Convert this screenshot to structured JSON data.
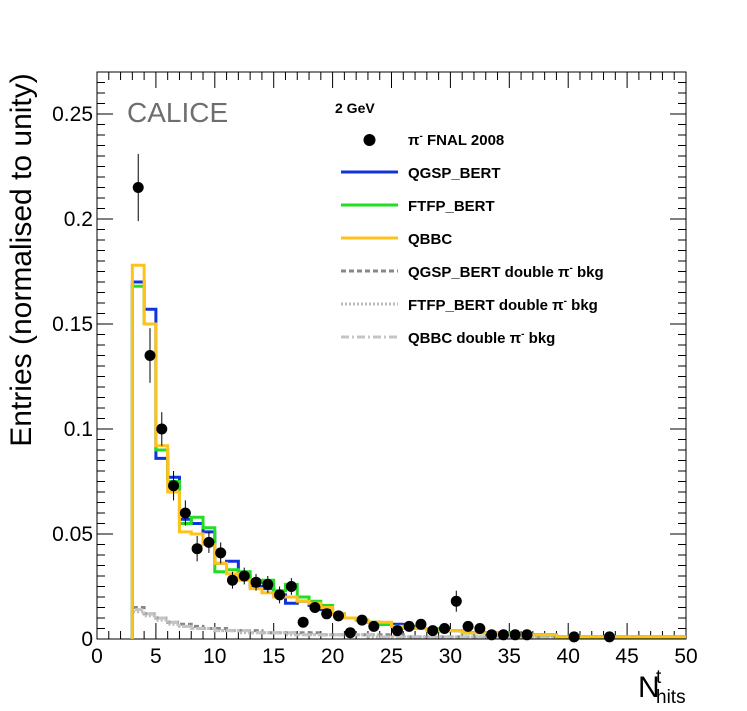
{
  "chart_data": {
    "type": "histogram",
    "title": "",
    "xlabel": {
      "main": "N",
      "sup": "t",
      "sub": "hits"
    },
    "ylabel": "Entries (normalised to unity)",
    "xlim": [
      0,
      50
    ],
    "ylim": [
      0,
      0.27
    ],
    "x_ticks": [
      0,
      5,
      10,
      15,
      20,
      25,
      30,
      35,
      40,
      45,
      50
    ],
    "x_tick_labels": [
      "0",
      "5",
      "10",
      "15",
      "20",
      "25",
      "30",
      "35",
      "40",
      "45",
      "50"
    ],
    "y_ticks": [
      0,
      0.05,
      0.1,
      0.15,
      0.2,
      0.25
    ],
    "y_tick_labels": [
      "0",
      "0.05",
      "0.1",
      "0.15",
      "0.2",
      "0.25"
    ],
    "watermark": "CALICE",
    "energy_label": "2 GeV",
    "data_points": {
      "name": "FNAL 2008",
      "x": [
        3.5,
        4.5,
        5.5,
        6.5,
        7.5,
        8.5,
        9.5,
        10.5,
        11.5,
        12.5,
        13.5,
        14.5,
        15.5,
        16.5,
        17.5,
        18.5,
        19.5,
        20.5,
        21.5,
        22.5,
        23.5,
        25.5,
        26.5,
        27.5,
        28.5,
        29.5,
        30.5,
        31.5,
        32.5,
        33.5,
        34.5,
        35.5,
        36.5,
        40.5,
        43.5
      ],
      "y": [
        0.215,
        0.135,
        0.1,
        0.073,
        0.06,
        0.043,
        0.046,
        0.041,
        0.028,
        0.03,
        0.027,
        0.026,
        0.021,
        0.025,
        0.008,
        0.015,
        0.012,
        0.011,
        0.003,
        0.009,
        0.006,
        0.004,
        0.006,
        0.007,
        0.004,
        0.005,
        0.018,
        0.006,
        0.005,
        0.002,
        0.002,
        0.002,
        0.002,
        0.001,
        0.001
      ],
      "err": [
        0.016,
        0.013,
        0.008,
        0.007,
        0.006,
        0.006,
        0.005,
        0.005,
        0.004,
        0.004,
        0.004,
        0.004,
        0.004,
        0.004,
        0.002,
        0.002,
        0.002,
        0.002,
        0.001,
        0.002,
        0.001,
        0.001,
        0.001,
        0.001,
        0.001,
        0.001,
        0.005,
        0.001,
        0.001,
        0.001,
        0.001,
        0.001,
        0.001,
        0.001,
        0.001
      ]
    },
    "bin_edges": [
      3,
      4,
      5,
      6,
      7,
      8,
      9,
      10,
      11,
      12,
      13,
      14,
      15,
      16,
      17,
      18,
      19,
      20,
      21,
      22,
      23,
      24,
      25,
      26,
      27,
      28,
      29,
      30,
      31,
      32,
      33,
      34,
      35,
      36,
      37,
      38,
      39,
      40,
      41,
      42,
      43,
      44,
      45,
      46,
      47,
      48,
      49,
      50
    ],
    "series": [
      {
        "name": "QGSP_BERT",
        "color": "#1133dd",
        "style": "solid",
        "values": [
          0.17,
          0.157,
          0.086,
          0.077,
          0.057,
          0.055,
          0.051,
          0.036,
          0.037,
          0.03,
          0.025,
          0.024,
          0.021,
          0.017,
          0.018,
          0.016,
          0.014,
          0.012,
          0.01,
          0.009,
          0.008,
          0.007,
          0.007,
          0.005,
          0.005,
          0.005,
          0.004,
          0.004,
          0.003,
          0.003,
          0.003,
          0.003,
          0.002,
          0.002,
          0.002,
          0.002,
          0.001,
          0.001,
          0.001,
          0.001,
          0.001,
          0.001,
          0.001,
          0.001,
          0.001,
          0.001,
          0.001
        ]
      },
      {
        "name": "FTFP_BERT",
        "color": "#22dd22",
        "style": "solid",
        "values": [
          0.168,
          0.15,
          0.09,
          0.075,
          0.055,
          0.058,
          0.053,
          0.032,
          0.033,
          0.032,
          0.027,
          0.028,
          0.023,
          0.026,
          0.02,
          0.018,
          0.016,
          0.012,
          0.01,
          0.009,
          0.008,
          0.007,
          0.006,
          0.006,
          0.005,
          0.005,
          0.004,
          0.004,
          0.003,
          0.003,
          0.003,
          0.003,
          0.002,
          0.002,
          0.002,
          0.002,
          0.001,
          0.001,
          0.001,
          0.001,
          0.001,
          0.001,
          0.001,
          0.001,
          0.001,
          0.001,
          0.001
        ]
      },
      {
        "name": "QBBC",
        "color": "#ffc21c",
        "style": "solid",
        "values": [
          0.178,
          0.15,
          0.092,
          0.07,
          0.051,
          0.05,
          0.045,
          0.036,
          0.031,
          0.028,
          0.024,
          0.022,
          0.02,
          0.02,
          0.018,
          0.017,
          0.015,
          0.012,
          0.01,
          0.009,
          0.008,
          0.008,
          0.006,
          0.005,
          0.005,
          0.004,
          0.004,
          0.004,
          0.003,
          0.003,
          0.003,
          0.002,
          0.002,
          0.002,
          0.002,
          0.002,
          0.001,
          0.001,
          0.001,
          0.001,
          0.001,
          0.001,
          0.001,
          0.001,
          0.001,
          0.001,
          0.001
        ]
      },
      {
        "name": "QGSP_BERT double",
        "color": "#888888",
        "style": "dashed",
        "values": [
          0.015,
          0.012,
          0.01,
          0.008,
          0.007,
          0.006,
          0.005,
          0.005,
          0.004,
          0.004,
          0.004,
          0.003,
          0.003,
          0.003,
          0.003,
          0.003,
          0.002,
          0.002,
          0.002,
          0.002,
          0.002,
          0.002,
          0.002,
          0.001,
          0.001,
          0.001,
          0.001,
          0.001,
          0.001,
          0.001,
          0.001,
          0.001,
          0.001,
          0.001,
          0.001,
          0.001,
          0.001,
          0.001,
          0.001,
          0.001,
          0.001,
          0.001,
          0.001,
          0.001,
          0.001,
          0.001,
          0.001
        ]
      },
      {
        "name": "FTFP_BERT double",
        "color": "#bbbbbb",
        "style": "dotted",
        "values": [
          0.013,
          0.011,
          0.009,
          0.007,
          0.006,
          0.005,
          0.005,
          0.004,
          0.004,
          0.003,
          0.003,
          0.003,
          0.003,
          0.002,
          0.002,
          0.002,
          0.002,
          0.002,
          0.002,
          0.002,
          0.001,
          0.001,
          0.001,
          0.001,
          0.001,
          0.001,
          0.001,
          0.001,
          0.001,
          0.001,
          0.001,
          0.001,
          0.001,
          0.001,
          0.001,
          0.001,
          0.001,
          0.001,
          0.001,
          0.001,
          0.001,
          0.001,
          0.001,
          0.001,
          0.001,
          0.001,
          0.001
        ]
      },
      {
        "name": "QBBC double",
        "color": "#c4c4c4",
        "style": "dashdot",
        "values": [
          0.014,
          0.012,
          0.01,
          0.008,
          0.006,
          0.005,
          0.005,
          0.004,
          0.004,
          0.004,
          0.003,
          0.003,
          0.003,
          0.003,
          0.002,
          0.002,
          0.002,
          0.002,
          0.002,
          0.002,
          0.002,
          0.001,
          0.001,
          0.001,
          0.001,
          0.001,
          0.001,
          0.001,
          0.001,
          0.001,
          0.001,
          0.001,
          0.001,
          0.001,
          0.001,
          0.001,
          0.001,
          0.001,
          0.001,
          0.001,
          0.001,
          0.001,
          0.001,
          0.001,
          0.001,
          0.001,
          0.001
        ]
      }
    ],
    "legend": {
      "position": "top-right",
      "entries": [
        {
          "label": "FNAL 2008",
          "prefix": "π",
          "prefix_sup": "-",
          "marker": "point",
          "color": "#000000"
        },
        {
          "label": "QGSP_BERT",
          "marker": "line",
          "color": "#1133dd",
          "style": "solid"
        },
        {
          "label": "FTFP_BERT",
          "marker": "line",
          "color": "#22dd22",
          "style": "solid"
        },
        {
          "label": "QBBC",
          "marker": "line",
          "color": "#ffc21c",
          "style": "solid"
        },
        {
          "label": "QGSP_BERT double ",
          "suffix_pi": "π",
          "suffix_sup": "-",
          "suffix": " bkg",
          "marker": "line",
          "color": "#888888",
          "style": "dashed"
        },
        {
          "label": "FTFP_BERT double ",
          "suffix_pi": "π",
          "suffix_sup": "-",
          "suffix": " bkg",
          "marker": "line",
          "color": "#bbbbbb",
          "style": "dotted"
        },
        {
          "label": "QBBC double ",
          "suffix_pi": "π",
          "suffix_sup": "-",
          "suffix": " bkg",
          "marker": "line",
          "color": "#c4c4c4",
          "style": "dashdot"
        }
      ]
    }
  }
}
